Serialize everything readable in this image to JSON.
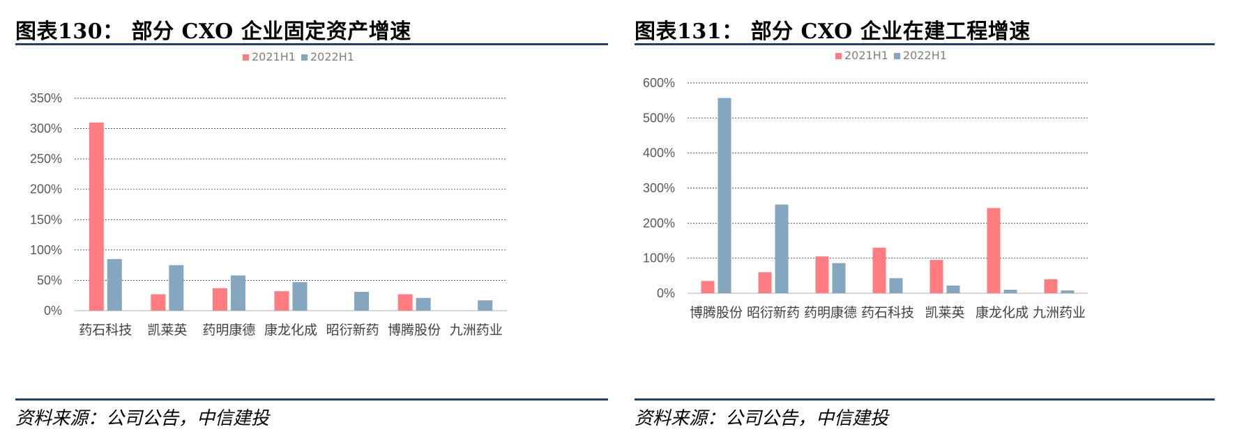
{
  "charts": [
    {
      "title": "图表130：  部分 CXO 企业固定资产增速",
      "source": "资料来源：公司公告，中信建投"
    },
    {
      "title": "图表131：  部分 CXO 企业在建工程增速",
      "source": "资料来源：公司公告，中信建投"
    }
  ],
  "chart_data": [
    {
      "type": "bar",
      "categories": [
        "药石科技",
        "凯莱英",
        "药明康德",
        "康龙化成",
        "昭衍新药",
        "博腾股份",
        "九洲药业"
      ],
      "series": [
        {
          "name": "2021H1",
          "color": "#ff7c80",
          "values": [
            310,
            27,
            37,
            32,
            null,
            27,
            null
          ]
        },
        {
          "name": "2022H1",
          "color": "#84a6bf",
          "values": [
            85,
            75,
            58,
            47,
            31,
            21,
            17
          ]
        }
      ],
      "ylim": [
        0,
        350
      ],
      "yticks": [
        0,
        50,
        100,
        150,
        200,
        250,
        300,
        350
      ],
      "ytick_labels": [
        "0%",
        "50%",
        "100%",
        "150%",
        "200%",
        "250%",
        "300%",
        "350%"
      ],
      "grid": true,
      "legend": "top-center"
    },
    {
      "type": "bar",
      "categories": [
        "博腾股份",
        "昭衍新药",
        "药明康德",
        "药石科技",
        "凯莱英",
        "康龙化成",
        "九洲药业"
      ],
      "series": [
        {
          "name": "2021H1",
          "color": "#ff7c80",
          "values": [
            35,
            60,
            105,
            130,
            95,
            243,
            40
          ]
        },
        {
          "name": "2022H1",
          "color": "#84a6bf",
          "values": [
            557,
            253,
            86,
            43,
            22,
            10,
            8
          ]
        }
      ],
      "ylim": [
        0,
        600
      ],
      "yticks": [
        0,
        100,
        200,
        300,
        400,
        500,
        600
      ],
      "ytick_labels": [
        "0%",
        "100%",
        "200%",
        "300%",
        "400%",
        "500%",
        "600%"
      ],
      "grid": true,
      "legend": "top-center"
    }
  ]
}
